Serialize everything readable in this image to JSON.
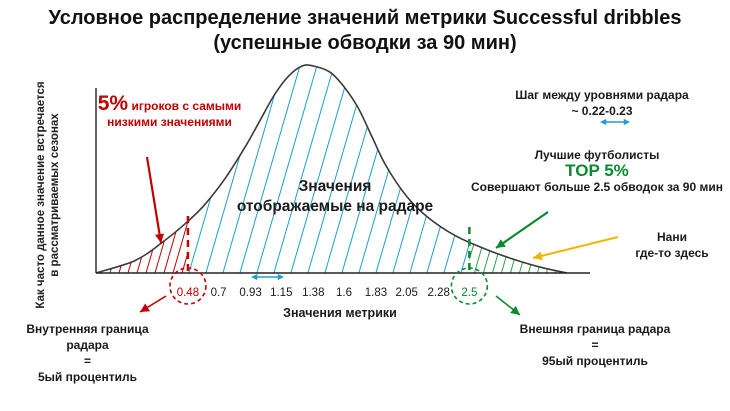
{
  "chart_data": {
    "type": "area",
    "title_line1": "Условное распределение значений метрики  Successful dribbles",
    "title_line2": "(успешные обводки за 90 мин)",
    "xlabel": "Значения метрики",
    "ylabel_line1": "Как часто данное значение встречается",
    "ylabel_line2": "в рассматриваемых сезонах",
    "ticks": [
      "0.48",
      "0.7",
      "0.93",
      "1.15",
      "1.38",
      "1.6",
      "1.83",
      "2.05",
      "2.28",
      "2.5"
    ],
    "tick_values": [
      0.48,
      0.7,
      0.93,
      1.15,
      1.38,
      1.6,
      1.83,
      2.05,
      2.28,
      2.5
    ],
    "xlim": [
      -0.18,
      3.33
    ],
    "ylim": [
      0,
      1.0
    ],
    "curve": {
      "x": [
        -0.18,
        0.1,
        0.3,
        0.48,
        0.6,
        0.75,
        0.9,
        1.0,
        1.1,
        1.2,
        1.3,
        1.38,
        1.5,
        1.6,
        1.7,
        1.8,
        1.9,
        2.05,
        2.2,
        2.4,
        2.6,
        2.8,
        3.0,
        3.2
      ],
      "y": [
        0.0,
        0.06,
        0.15,
        0.25,
        0.33,
        0.46,
        0.62,
        0.74,
        0.86,
        0.95,
        1.0,
        1.0,
        0.97,
        0.9,
        0.8,
        0.66,
        0.52,
        0.37,
        0.27,
        0.18,
        0.12,
        0.07,
        0.03,
        0.0
      ]
    },
    "regions": [
      {
        "name": "low",
        "from": -0.18,
        "to": 0.48,
        "color": "#c00000"
      },
      {
        "name": "main",
        "from": 0.48,
        "to": 2.5,
        "color": "#1f9fc8"
      },
      {
        "name": "top",
        "from": 2.5,
        "to": 3.2,
        "color": "#2aa24a"
      }
    ]
  },
  "annotations": {
    "low_pct": "5%",
    "low_text_1": "игроков с самыми",
    "low_text_2": "низкими значениями",
    "center_1": "Значения",
    "center_2": "отображаемые на радаре",
    "step_1": "Шаг между уровнями радара",
    "step_2": "~ 0.22-0.23",
    "best_1": "Лучшие футболисты",
    "best_2": "TOP 5%",
    "best_3": "Совершают больше 2.5 обводок за 90 мин",
    "player_1": "Нани",
    "player_2": "где-то здесь",
    "inner_1": "Внутренняя граница радара",
    "inner_2": "=",
    "inner_3": "5ый процентиль",
    "outer_1": "Внешняя граница радара",
    "outer_2": "=",
    "outer_3": "95ый процентиль"
  },
  "colors": {
    "red": "#c00000",
    "blue": "#1f9fc8",
    "green": "#0a8a2e",
    "gold": "#f2b600",
    "curve": "#3a3a3a"
  }
}
